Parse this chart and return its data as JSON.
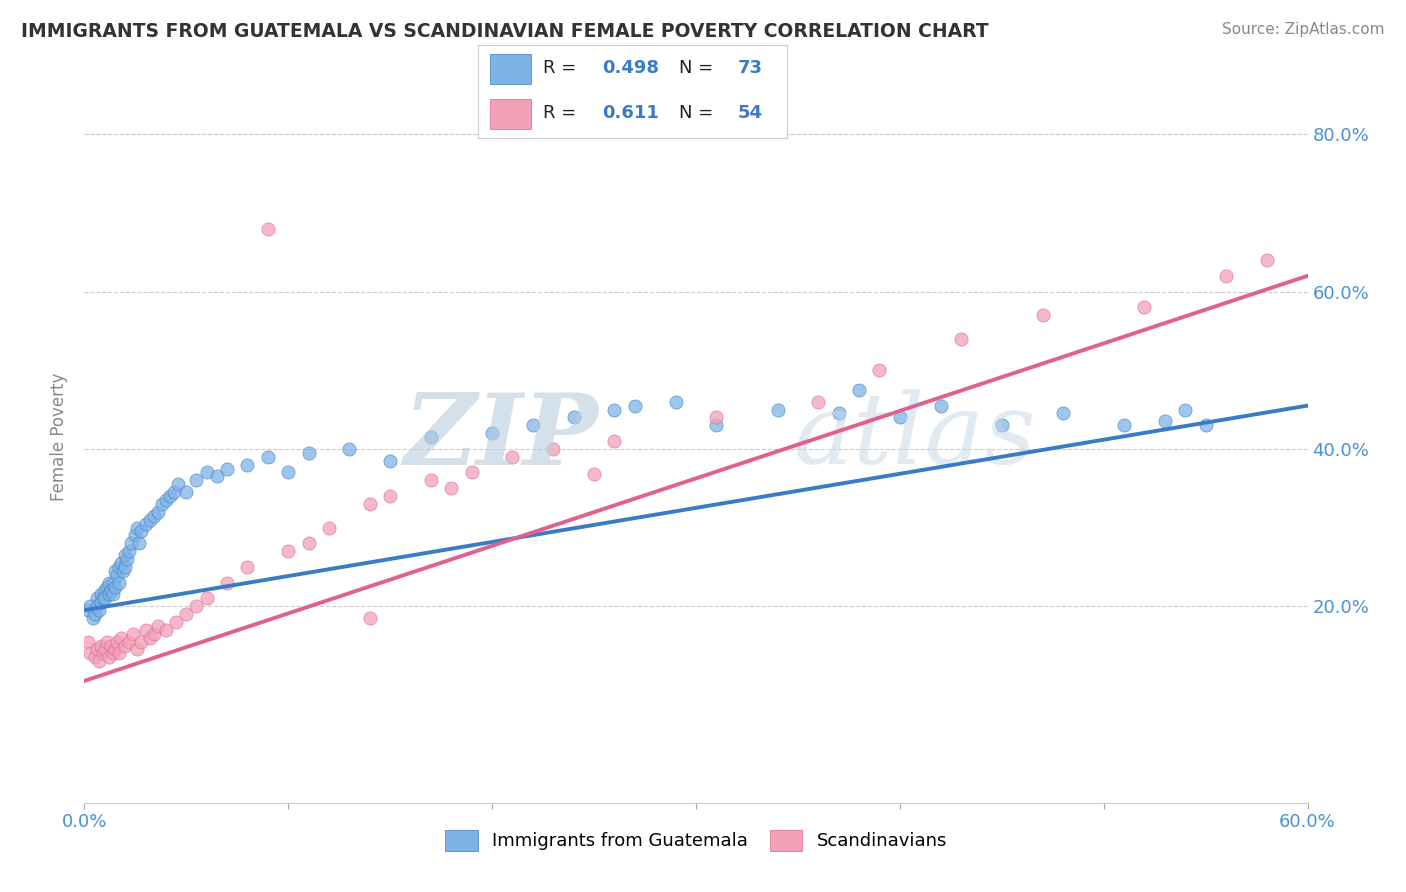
{
  "title": "IMMIGRANTS FROM GUATEMALA VS SCANDINAVIAN FEMALE POVERTY CORRELATION CHART",
  "source": "Source: ZipAtlas.com",
  "ylabel": "Female Poverty",
  "xlim": [
    0.0,
    0.6
  ],
  "ylim": [
    -0.05,
    0.88
  ],
  "ytick_positions": [
    0.2,
    0.4,
    0.6,
    0.8
  ],
  "ytick_labels": [
    "20.0%",
    "40.0%",
    "60.0%",
    "80.0%"
  ],
  "color_blue": "#7EB3E8",
  "color_pink": "#F2A0B8",
  "color_blue_line": "#3A7CC4",
  "color_pink_line": "#E06090",
  "color_title": "#333333",
  "grid_color": "#CCCCCC",
  "background_color": "#FFFFFF",
  "blue_x": [
    0.002,
    0.003,
    0.004,
    0.005,
    0.006,
    0.006,
    0.007,
    0.008,
    0.008,
    0.009,
    0.01,
    0.01,
    0.011,
    0.012,
    0.012,
    0.013,
    0.014,
    0.014,
    0.015,
    0.015,
    0.016,
    0.017,
    0.017,
    0.018,
    0.019,
    0.02,
    0.02,
    0.021,
    0.022,
    0.023,
    0.025,
    0.026,
    0.027,
    0.028,
    0.03,
    0.032,
    0.034,
    0.036,
    0.038,
    0.04,
    0.042,
    0.044,
    0.046,
    0.05,
    0.055,
    0.06,
    0.065,
    0.07,
    0.08,
    0.09,
    0.1,
    0.11,
    0.13,
    0.15,
    0.17,
    0.2,
    0.22,
    0.24,
    0.27,
    0.31,
    0.34,
    0.37,
    0.4,
    0.42,
    0.45,
    0.48,
    0.51,
    0.53,
    0.54,
    0.55,
    0.38,
    0.29,
    0.26
  ],
  "blue_y": [
    0.195,
    0.2,
    0.185,
    0.19,
    0.21,
    0.2,
    0.195,
    0.215,
    0.205,
    0.21,
    0.22,
    0.21,
    0.225,
    0.215,
    0.23,
    0.22,
    0.23,
    0.215,
    0.245,
    0.225,
    0.24,
    0.25,
    0.23,
    0.255,
    0.245,
    0.265,
    0.25,
    0.26,
    0.27,
    0.28,
    0.29,
    0.3,
    0.28,
    0.295,
    0.305,
    0.31,
    0.315,
    0.32,
    0.33,
    0.335,
    0.34,
    0.345,
    0.355,
    0.345,
    0.36,
    0.37,
    0.365,
    0.375,
    0.38,
    0.39,
    0.37,
    0.395,
    0.4,
    0.385,
    0.415,
    0.42,
    0.43,
    0.44,
    0.455,
    0.43,
    0.45,
    0.445,
    0.44,
    0.455,
    0.43,
    0.445,
    0.43,
    0.435,
    0.45,
    0.43,
    0.475,
    0.46,
    0.45
  ],
  "pink_x": [
    0.002,
    0.003,
    0.005,
    0.006,
    0.007,
    0.008,
    0.009,
    0.01,
    0.011,
    0.012,
    0.013,
    0.014,
    0.015,
    0.016,
    0.017,
    0.018,
    0.02,
    0.022,
    0.024,
    0.026,
    0.028,
    0.03,
    0.032,
    0.034,
    0.036,
    0.04,
    0.045,
    0.05,
    0.055,
    0.06,
    0.07,
    0.08,
    0.1,
    0.11,
    0.12,
    0.14,
    0.15,
    0.17,
    0.19,
    0.21,
    0.23,
    0.26,
    0.31,
    0.36,
    0.39,
    0.43,
    0.47,
    0.52,
    0.56,
    0.58,
    0.25,
    0.18,
    0.14,
    0.09
  ],
  "pink_y": [
    0.155,
    0.14,
    0.135,
    0.145,
    0.13,
    0.15,
    0.14,
    0.145,
    0.155,
    0.135,
    0.15,
    0.14,
    0.145,
    0.155,
    0.14,
    0.16,
    0.15,
    0.155,
    0.165,
    0.145,
    0.155,
    0.17,
    0.16,
    0.165,
    0.175,
    0.17,
    0.18,
    0.19,
    0.2,
    0.21,
    0.23,
    0.25,
    0.27,
    0.28,
    0.3,
    0.33,
    0.34,
    0.36,
    0.37,
    0.39,
    0.4,
    0.41,
    0.44,
    0.46,
    0.5,
    0.54,
    0.57,
    0.58,
    0.62,
    0.64,
    0.368,
    0.35,
    0.185,
    0.68
  ],
  "blue_line_x0": 0.0,
  "blue_line_y0": 0.195,
  "blue_line_x1": 0.6,
  "blue_line_y1": 0.455,
  "pink_line_x0": 0.0,
  "pink_line_y0": 0.105,
  "pink_line_x1": 0.6,
  "pink_line_y1": 0.62
}
